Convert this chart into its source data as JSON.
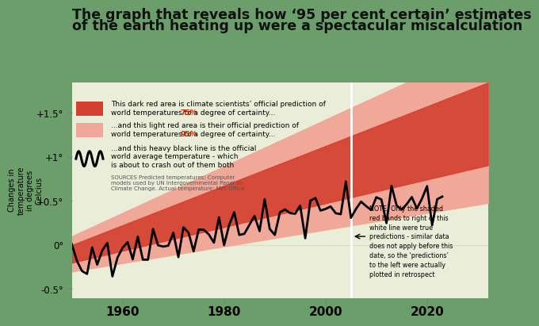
{
  "title_line1": "The graph that reveals how ‘95 per cent certain’ estimates",
  "title_line2": "of the earth heating up were a spectacular miscalculation",
  "ylabel": "Changes in\ntemperature\nin degrees\nCelcius",
  "bg_outer": "#6b9e6b",
  "bg_plot": "#eaeed8",
  "dark_red": "#d44030",
  "light_red": "#f0a898",
  "white_line_x": 2005,
  "ylim": [
    -0.6,
    1.85
  ],
  "yticks": [
    -0.5,
    0.0,
    0.5,
    1.0,
    1.5
  ],
  "ytick_labels": [
    "-0.5°",
    "0°",
    "+0.5°",
    "+1°",
    "+1.5°"
  ],
  "xticks": [
    1960,
    1980,
    2000,
    2020
  ],
  "xmin": 1950,
  "xmax": 2032,
  "legend_dark_label1": "This dark red area is climate scientists’ official prediction of",
  "legend_dark_label2": "world temperatures to a ",
  "legend_dark_pct": "75%",
  "legend_dark_label3": " degree of certainty...",
  "legend_light_label1": "...and this light red area is their official prediction of",
  "legend_light_label2": "world temperatures to a ",
  "legend_light_pct": "95%",
  "legend_light_label3": " degree of certainty...",
  "legend_black_label1": "...and this heavy black line is the official",
  "legend_black_label2": "world average temperature - which",
  "legend_black_label3": "is about to crash out of them both",
  "sources_text": "SOURCES Predicted temperatures: Computer\nmodels used by UN Intergovernmental Panel on\nClimate Change. Actual temperature: Met Office",
  "note_text": "NOTE: Only the shaded\nred bands to right of this\nwhite line were true\npredictions - similar data\ndoes not apply before this\ndate, so the ‘predictions’\nto the left were actually\nplotted in retrospect",
  "title_color": "#111111",
  "title_fontsize": 12.5,
  "red_pct_color": "#cc2200"
}
